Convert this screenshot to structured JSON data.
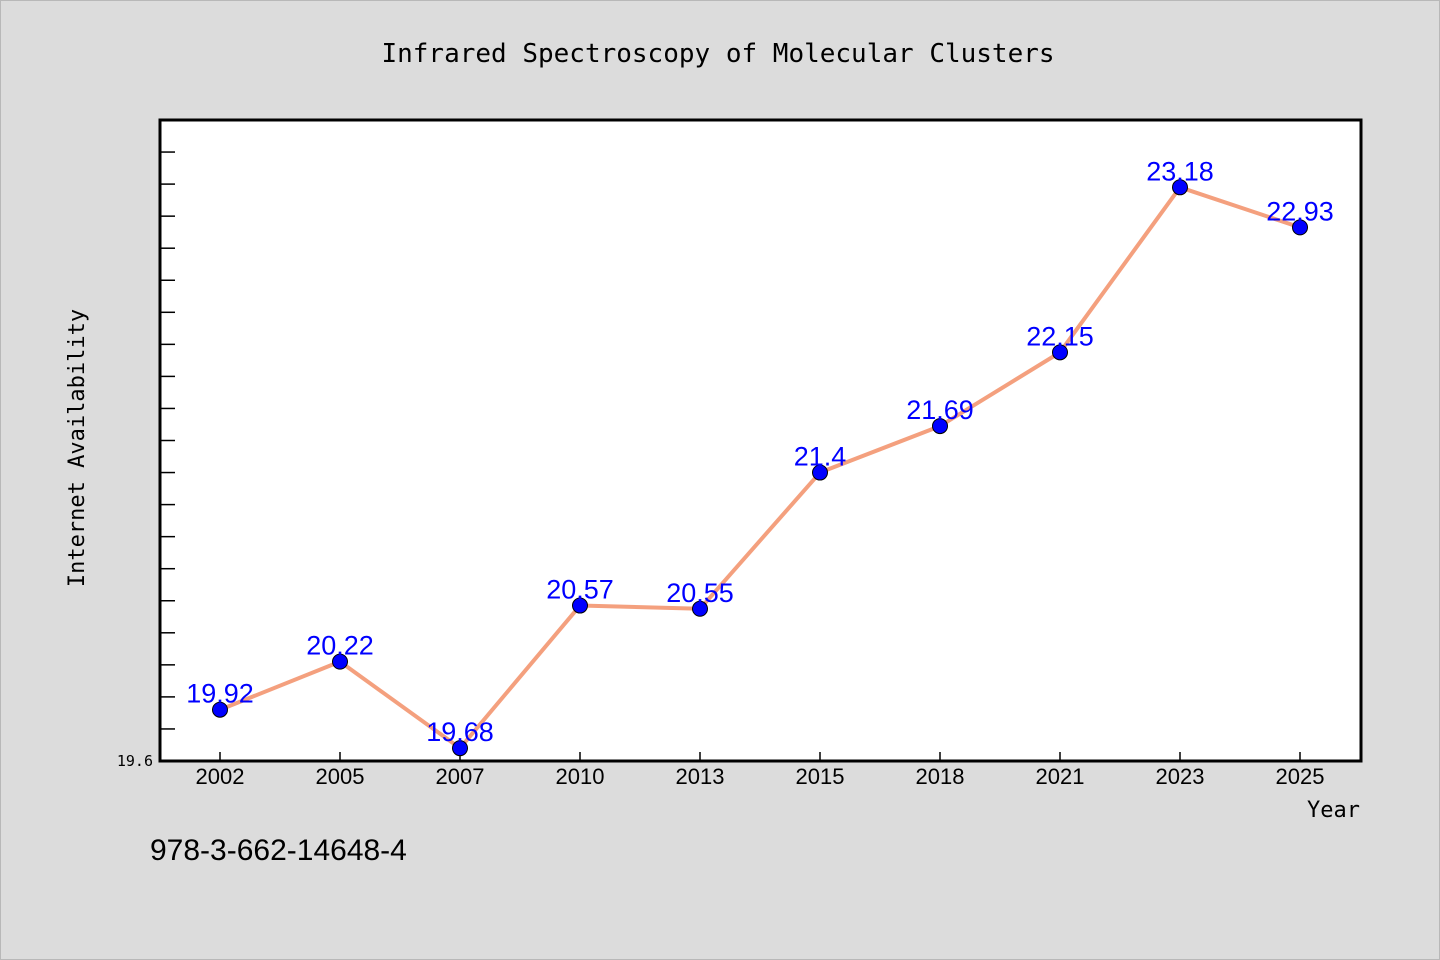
{
  "chart_data": {
    "type": "line",
    "title": "Infrared Spectroscopy of Molecular Clusters",
    "xlabel": "Year",
    "ylabel": "Internet Availability",
    "categories": [
      "2002",
      "2005",
      "2007",
      "2010",
      "2013",
      "2015",
      "2018",
      "2021",
      "2023",
      "2025"
    ],
    "series": [
      {
        "values": [
          19.92,
          20.22,
          19.68,
          20.57,
          20.55,
          21.4,
          21.69,
          22.15,
          23.18,
          22.93
        ],
        "labels": [
          "19.92",
          "20.22",
          "19.68",
          "20.57",
          "20.55",
          "21.4",
          "21.69",
          "22.15",
          "23.18",
          "22.93"
        ]
      }
    ],
    "ylim": [
      19.6,
      23.6
    ],
    "y_min_label": "19.6",
    "grid": false,
    "line_color": "#f4a07e",
    "marker_color": "#0000ff",
    "label_color": "#0000ff",
    "plot_background": "#ffffff",
    "figure_background": "#dcdcdc"
  },
  "footer": {
    "text": "978-3-662-14648-4"
  }
}
